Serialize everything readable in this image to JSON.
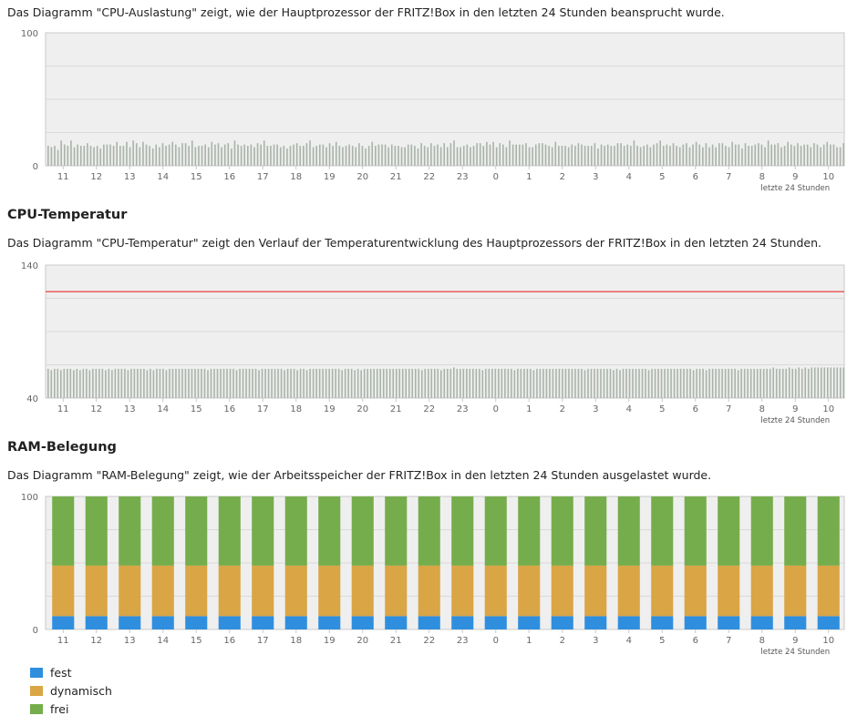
{
  "cpu_load": {
    "description": "Das Diagramm \"CPU-Auslastung\" zeigt, wie der Hauptprozessor der FRITZ!Box in den letzten 24 Stunden beansprucht wurde."
  },
  "cpu_temp": {
    "heading": "CPU-Temperatur",
    "description": "Das Diagramm \"CPU-Temperatur\" zeigt den Verlauf der Temperaturentwicklung des Hauptprozessors der FRITZ!Box in den letzten 24 Stunden."
  },
  "ram": {
    "heading": "RAM-Belegung",
    "description": "Das Diagramm \"RAM-Belegung\" zeigt, wie der Arbeitsspeicher der FRITZ!Box in den letzten 24 Stunden ausgelastet wurde.",
    "legend": [
      {
        "label": "fest",
        "color": "#2f8fde"
      },
      {
        "label": "dynamisch",
        "color": "#daa545"
      },
      {
        "label": "frei",
        "color": "#76ad4c"
      }
    ]
  },
  "chart_data": [
    {
      "type": "bar",
      "id": "cpu_load",
      "title": "",
      "xlabel": "letzte 24 Stunden",
      "ylabel": "",
      "ylim": [
        0,
        100
      ],
      "x_ticks": [
        "11",
        "12",
        "13",
        "14",
        "15",
        "16",
        "17",
        "18",
        "19",
        "20",
        "21",
        "22",
        "23",
        "0",
        "1",
        "2",
        "3",
        "4",
        "5",
        "6",
        "7",
        "8",
        "9",
        "10"
      ],
      "y_ticks": [
        "0",
        "100"
      ],
      "grid": true,
      "bar_color": "#a9b3a9",
      "series": [
        {
          "values": [
            15,
            14,
            15,
            12,
            19,
            16,
            15,
            19,
            14,
            16,
            15,
            15,
            17,
            15,
            14,
            15,
            13,
            16,
            16,
            16,
            15,
            18,
            15,
            15,
            18,
            14,
            19,
            17,
            14,
            18,
            16,
            15,
            13,
            16,
            14,
            17,
            15,
            16,
            18,
            16,
            14,
            17,
            17,
            15,
            19,
            14,
            15,
            15,
            16,
            14,
            18,
            16,
            17,
            14,
            16,
            17,
            13,
            19,
            16,
            15,
            16,
            15,
            16,
            14,
            17,
            16,
            19,
            15,
            15,
            16,
            16,
            14,
            15,
            13,
            15,
            16,
            17,
            15,
            15,
            17,
            19,
            14,
            15,
            16,
            16,
            14,
            17,
            15,
            18,
            15,
            14,
            15,
            16,
            15,
            14,
            17,
            15,
            13,
            15,
            18,
            15,
            16,
            16,
            16,
            14,
            16,
            15,
            15,
            14,
            14,
            16,
            16,
            15,
            13,
            17,
            15,
            14,
            17,
            15,
            16,
            14,
            17,
            14,
            17,
            19,
            14,
            14,
            15,
            16,
            14,
            15,
            17,
            17,
            15,
            18,
            16,
            18,
            14,
            17,
            16,
            14,
            19,
            16,
            16,
            16,
            16,
            17,
            14,
            14,
            16,
            17,
            17,
            16,
            15,
            14,
            18,
            15,
            15,
            15,
            14,
            16,
            15,
            17,
            16,
            15,
            15,
            15,
            17,
            13,
            16,
            15,
            16,
            15,
            15,
            17,
            17,
            15,
            16,
            15,
            19,
            15,
            14,
            15,
            16,
            14,
            16,
            17,
            19,
            15,
            16,
            15,
            17,
            15,
            14,
            16,
            17,
            14,
            16,
            18,
            16,
            14,
            17,
            14,
            16,
            14,
            17,
            17,
            15,
            14,
            18,
            16,
            16,
            13,
            17,
            15,
            15,
            16,
            17,
            16,
            14,
            19,
            16,
            16,
            17,
            14,
            15,
            18,
            16,
            15,
            17,
            15,
            16,
            16,
            14,
            17,
            16,
            14,
            16,
            18,
            16,
            16,
            14,
            14,
            17
          ]
        }
      ]
    },
    {
      "type": "bar",
      "id": "cpu_temp",
      "title": "",
      "xlabel": "letzte 24 Stunden",
      "ylabel": "",
      "ylim": [
        40,
        140
      ],
      "x_ticks": [
        "11",
        "12",
        "13",
        "14",
        "15",
        "16",
        "17",
        "18",
        "19",
        "20",
        "21",
        "22",
        "23",
        "0",
        "1",
        "2",
        "3",
        "4",
        "5",
        "6",
        "7",
        "8",
        "9",
        "10"
      ],
      "y_ticks": [
        "40",
        "140"
      ],
      "grid": true,
      "bar_color": "#a9b3a9",
      "threshold": {
        "value": 120,
        "color": "#e8504c"
      },
      "series": [
        {
          "values": [
            62,
            61,
            62,
            62,
            61,
            62,
            62,
            62,
            61,
            62,
            61,
            62,
            62,
            61,
            62,
            62,
            62,
            62,
            61,
            62,
            61,
            62,
            62,
            62,
            62,
            61,
            62,
            62,
            62,
            62,
            62,
            61,
            62,
            61,
            62,
            62,
            62,
            61,
            62,
            62,
            62,
            62,
            62,
            62,
            62,
            62,
            62,
            62,
            62,
            62,
            61,
            62,
            62,
            62,
            62,
            62,
            62,
            62,
            62,
            61,
            62,
            62,
            62,
            62,
            62,
            62,
            61,
            62,
            62,
            62,
            62,
            62,
            62,
            62,
            61,
            62,
            62,
            62,
            61,
            62,
            62,
            61,
            62,
            62,
            62,
            62,
            62,
            62,
            62,
            62,
            62,
            62,
            61,
            62,
            62,
            62,
            61,
            62,
            61,
            62,
            62,
            62,
            62,
            62,
            62,
            62,
            62,
            62,
            62,
            62,
            62,
            62,
            62,
            62,
            62,
            62,
            62,
            61,
            62,
            62,
            62,
            62,
            62,
            61,
            62,
            62,
            62,
            63,
            62,
            62,
            62,
            62,
            62,
            62,
            62,
            62,
            61,
            62,
            62,
            62,
            62,
            62,
            62,
            62,
            62,
            62,
            61,
            62,
            62,
            62,
            62,
            62,
            61,
            62,
            62,
            62,
            62,
            62,
            62,
            62,
            62,
            62,
            62,
            62,
            62,
            62,
            62,
            62,
            61,
            62,
            62,
            62,
            62,
            62,
            62,
            62,
            62,
            61,
            62,
            61,
            62,
            62,
            62,
            62,
            62,
            62,
            62,
            62,
            61,
            62,
            62,
            62,
            62,
            62,
            62,
            62,
            62,
            62,
            62,
            62,
            62,
            62,
            61,
            62,
            62,
            62,
            61,
            62,
            62,
            62,
            62,
            62,
            62,
            62,
            62,
            62,
            61,
            62,
            62,
            62,
            62,
            62,
            62,
            62,
            62,
            62,
            62,
            63,
            62,
            62,
            62,
            62,
            63,
            62,
            62,
            63,
            62,
            63,
            62,
            63,
            63,
            63,
            63,
            63,
            63,
            63,
            63,
            63,
            63,
            63
          ]
        }
      ]
    },
    {
      "type": "bar",
      "id": "ram",
      "title": "",
      "xlabel": "letzte 24 Stunden",
      "ylabel": "",
      "ylim": [
        0,
        100
      ],
      "stacked": true,
      "categories": [
        "11",
        "12",
        "13",
        "14",
        "15",
        "16",
        "17",
        "18",
        "19",
        "20",
        "21",
        "22",
        "23",
        "0",
        "1",
        "2",
        "3",
        "4",
        "5",
        "6",
        "7",
        "8",
        "9",
        "10"
      ],
      "y_ticks": [
        "0",
        "100"
      ],
      "grid": true,
      "series": [
        {
          "name": "fest",
          "color": "#2f8fde",
          "values": [
            10,
            10,
            10,
            10,
            10,
            10,
            10,
            10,
            10,
            10,
            10,
            10,
            10,
            10,
            10,
            10,
            10,
            10,
            10,
            10,
            10,
            10,
            10,
            10
          ]
        },
        {
          "name": "dynamisch",
          "color": "#daa545",
          "values": [
            38,
            38,
            38,
            38,
            38,
            38,
            38,
            38,
            38,
            38,
            38,
            38,
            38,
            38,
            38,
            38,
            38,
            38,
            38,
            38,
            38,
            38,
            38,
            38
          ]
        },
        {
          "name": "frei",
          "color": "#76ad4c",
          "values": [
            52,
            52,
            52,
            52,
            52,
            52,
            52,
            52,
            52,
            52,
            52,
            52,
            52,
            52,
            52,
            52,
            52,
            52,
            52,
            52,
            52,
            52,
            52,
            52
          ]
        }
      ]
    }
  ]
}
